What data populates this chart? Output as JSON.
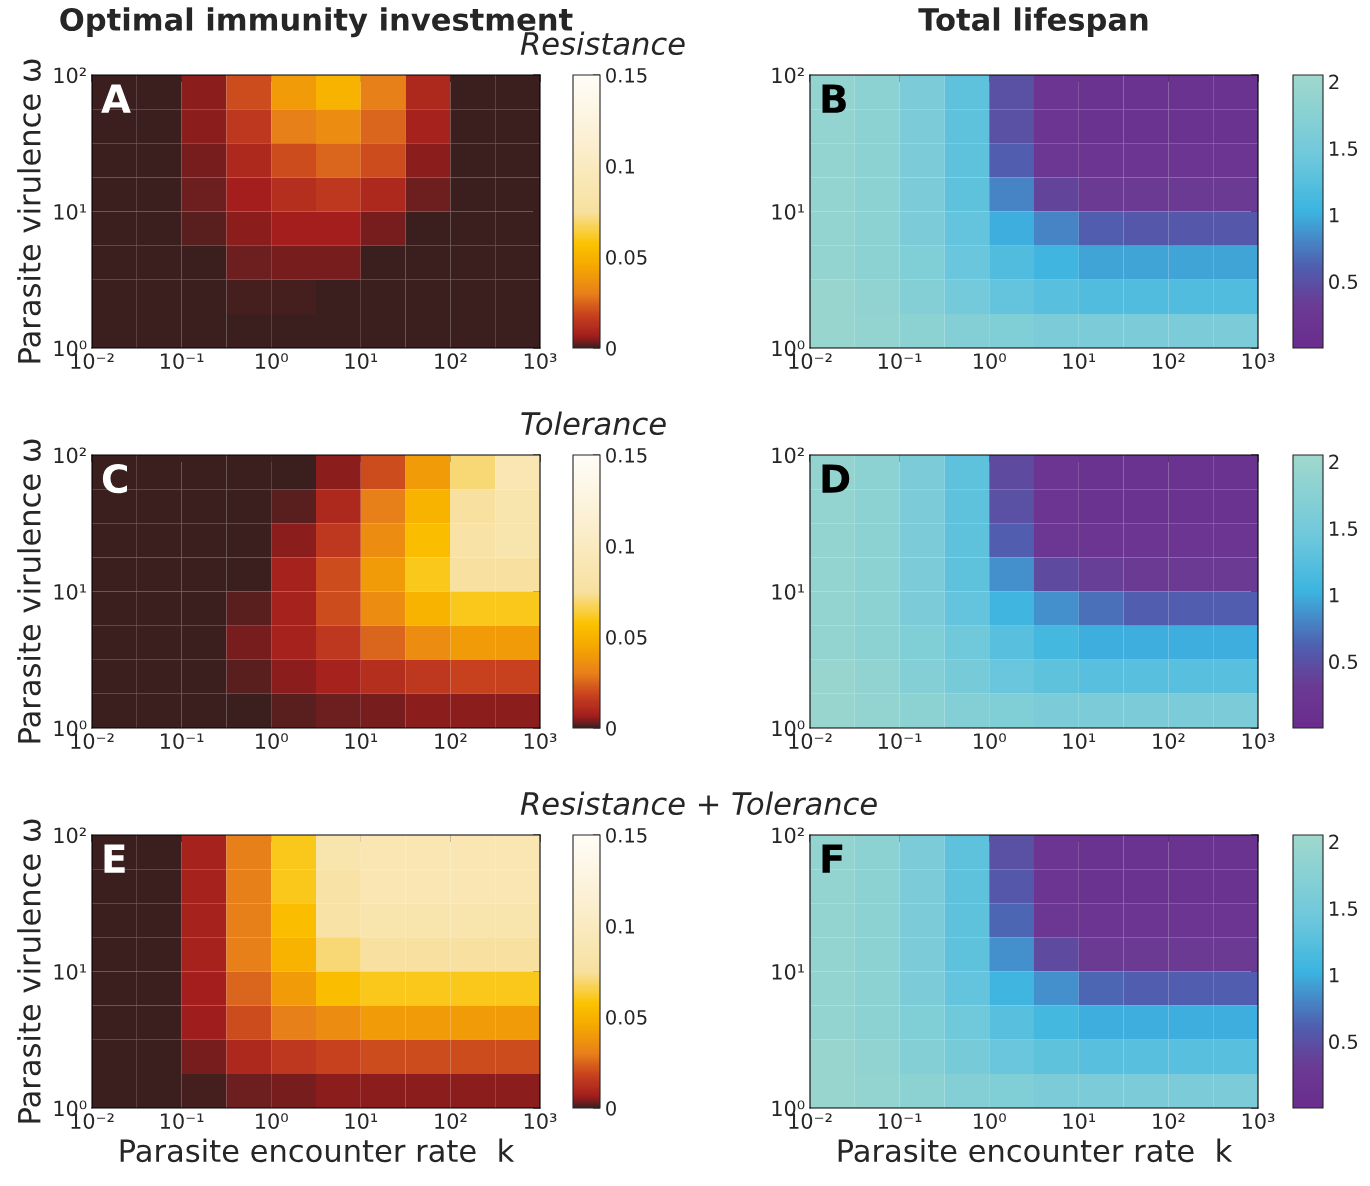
{
  "chart_data": [
    {
      "type": "heatmap",
      "title": "Optimal immunity investment",
      "subtitle": "Resistance",
      "ylabel": "Parasite virulence ω",
      "annotations": [
        "A"
      ],
      "xlim": [
        0.01,
        1000
      ],
      "ylim": [
        1,
        100
      ],
      "xticks": [
        {
          "value": 0.01,
          "label": "10⁻²"
        },
        {
          "value": 0.1,
          "label": "10⁻¹"
        },
        {
          "value": 1,
          "label": "10⁰"
        },
        {
          "value": 10,
          "label": "10¹"
        },
        {
          "value": 100,
          "label": "10²"
        },
        {
          "value": 1000,
          "label": "10³"
        }
      ],
      "yticks": [
        {
          "value": 1,
          "label": "10⁰"
        },
        {
          "value": 10,
          "label": "10¹"
        },
        {
          "value": 100,
          "label": "10²"
        }
      ],
      "clim": [
        0,
        0.15
      ],
      "cticks": [
        0,
        0.05,
        0.1,
        0.15
      ],
      "log": "xy",
      "cells": [
        [
          0,
          0,
          0.005,
          0.02,
          0.04,
          0.05,
          0.03,
          0.01,
          0,
          0
        ],
        [
          0,
          0,
          0.005,
          0.015,
          0.03,
          0.035,
          0.025,
          0.008,
          0,
          0
        ],
        [
          0,
          0,
          0.004,
          0.01,
          0.02,
          0.025,
          0.02,
          0.005,
          0,
          0
        ],
        [
          0,
          0,
          0.003,
          0.007,
          0.012,
          0.015,
          0.01,
          0.003,
          0,
          0
        ],
        [
          0,
          0,
          0.002,
          0.005,
          0.007,
          0.007,
          0.004,
          0,
          0,
          0
        ],
        [
          0,
          0,
          0,
          0.003,
          0.004,
          0.004,
          0,
          0,
          0,
          0
        ],
        [
          0,
          0,
          0,
          0.001,
          0.001,
          0,
          0,
          0,
          0,
          0
        ],
        [
          0,
          0,
          0,
          0,
          0,
          0,
          0,
          0,
          0,
          0
        ]
      ]
    },
    {
      "type": "heatmap",
      "title": "Total lifespan",
      "annotations": [
        "B"
      ],
      "xlim": [
        0.01,
        1000
      ],
      "ylim": [
        1,
        100
      ],
      "xticks": [
        {
          "value": 0.01,
          "label": "10⁻²"
        },
        {
          "value": 0.1,
          "label": "10⁻¹"
        },
        {
          "value": 1,
          "label": "10⁰"
        },
        {
          "value": 10,
          "label": "10¹"
        },
        {
          "value": 100,
          "label": "10²"
        },
        {
          "value": 1000,
          "label": "10³"
        }
      ],
      "yticks": [
        {
          "value": 1,
          "label": "10⁰"
        },
        {
          "value": 10,
          "label": "10¹"
        },
        {
          "value": 100,
          "label": "10²"
        }
      ],
      "clim": [
        0,
        2.05
      ],
      "cticks": [
        0.5,
        1,
        1.5,
        2
      ],
      "log": "xy",
      "cells": [
        [
          1.9,
          1.8,
          1.6,
          1.3,
          0.5,
          0.2,
          0.15,
          0.15,
          0.15,
          0.15
        ],
        [
          1.9,
          1.8,
          1.6,
          1.3,
          0.5,
          0.2,
          0.15,
          0.15,
          0.15,
          0.15
        ],
        [
          1.9,
          1.8,
          1.6,
          1.3,
          0.6,
          0.25,
          0.2,
          0.2,
          0.2,
          0.2
        ],
        [
          1.9,
          1.8,
          1.6,
          1.3,
          0.8,
          0.4,
          0.3,
          0.3,
          0.3,
          0.3
        ],
        [
          1.9,
          1.8,
          1.6,
          1.35,
          1.0,
          0.8,
          0.6,
          0.55,
          0.55,
          0.55
        ],
        [
          1.9,
          1.8,
          1.65,
          1.4,
          1.2,
          1.05,
          0.95,
          0.95,
          0.95,
          0.95
        ],
        [
          1.95,
          1.85,
          1.7,
          1.5,
          1.35,
          1.25,
          1.2,
          1.2,
          1.2,
          1.2
        ],
        [
          1.95,
          1.9,
          1.8,
          1.7,
          1.65,
          1.6,
          1.6,
          1.6,
          1.6,
          1.6
        ]
      ]
    },
    {
      "type": "heatmap",
      "subtitle": "Tolerance",
      "ylabel": "Parasite virulence ω",
      "annotations": [
        "C"
      ],
      "xlim": [
        0.01,
        1000
      ],
      "ylim": [
        1,
        100
      ],
      "xticks": [
        {
          "value": 0.01,
          "label": "10⁻²"
        },
        {
          "value": 0.1,
          "label": "10⁻¹"
        },
        {
          "value": 1,
          "label": "10⁰"
        },
        {
          "value": 10,
          "label": "10¹"
        },
        {
          "value": 100,
          "label": "10²"
        },
        {
          "value": 1000,
          "label": "10³"
        }
      ],
      "yticks": [
        {
          "value": 1,
          "label": "10⁰"
        },
        {
          "value": 10,
          "label": "10¹"
        },
        {
          "value": 100,
          "label": "10²"
        }
      ],
      "clim": [
        0,
        0.15
      ],
      "cticks": [
        0,
        0.05,
        0.1,
        0.15
      ],
      "log": "xy",
      "cells": [
        [
          0,
          0,
          0,
          0,
          0,
          0.005,
          0.02,
          0.04,
          0.07,
          0.09
        ],
        [
          0,
          0,
          0,
          0,
          0.002,
          0.01,
          0.03,
          0.05,
          0.075,
          0.085
        ],
        [
          0,
          0,
          0,
          0,
          0.005,
          0.015,
          0.035,
          0.055,
          0.08,
          0.085
        ],
        [
          0,
          0,
          0,
          0,
          0.008,
          0.02,
          0.04,
          0.06,
          0.075,
          0.075
        ],
        [
          0,
          0,
          0,
          0.002,
          0.008,
          0.02,
          0.035,
          0.05,
          0.06,
          0.06
        ],
        [
          0,
          0,
          0,
          0.004,
          0.008,
          0.015,
          0.025,
          0.035,
          0.04,
          0.04
        ],
        [
          0,
          0,
          0,
          0.002,
          0.005,
          0.008,
          0.012,
          0.015,
          0.018,
          0.018
        ],
        [
          0,
          0,
          0,
          0,
          0.002,
          0.003,
          0.004,
          0.005,
          0.005,
          0.005
        ]
      ]
    },
    {
      "type": "heatmap",
      "annotations": [
        "D"
      ],
      "xlim": [
        0.01,
        1000
      ],
      "ylim": [
        1,
        100
      ],
      "xticks": [
        {
          "value": 0.01,
          "label": "10⁻²"
        },
        {
          "value": 0.1,
          "label": "10⁻¹"
        },
        {
          "value": 1,
          "label": "10⁰"
        },
        {
          "value": 10,
          "label": "10¹"
        },
        {
          "value": 100,
          "label": "10²"
        },
        {
          "value": 1000,
          "label": "10³"
        }
      ],
      "yticks": [
        {
          "value": 1,
          "label": "10⁰"
        },
        {
          "value": 10,
          "label": "10¹"
        },
        {
          "value": 100,
          "label": "10²"
        }
      ],
      "clim": [
        0,
        2.05
      ],
      "cticks": [
        0.5,
        1,
        1.5,
        2
      ],
      "log": "xy",
      "cells": [
        [
          1.9,
          1.8,
          1.6,
          1.3,
          0.45,
          0.2,
          0.15,
          0.15,
          0.15,
          0.15
        ],
        [
          1.9,
          1.8,
          1.6,
          1.3,
          0.5,
          0.2,
          0.15,
          0.15,
          0.15,
          0.15
        ],
        [
          1.9,
          1.8,
          1.6,
          1.3,
          0.6,
          0.25,
          0.2,
          0.2,
          0.2,
          0.2
        ],
        [
          1.9,
          1.8,
          1.6,
          1.3,
          0.85,
          0.45,
          0.35,
          0.3,
          0.3,
          0.3
        ],
        [
          1.9,
          1.8,
          1.6,
          1.35,
          1.05,
          0.85,
          0.7,
          0.6,
          0.6,
          0.6
        ],
        [
          1.9,
          1.8,
          1.65,
          1.45,
          1.25,
          1.1,
          1.0,
          1.0,
          1.0,
          1.0
        ],
        [
          1.95,
          1.85,
          1.7,
          1.55,
          1.4,
          1.3,
          1.25,
          1.25,
          1.25,
          1.25
        ],
        [
          1.95,
          1.9,
          1.8,
          1.7,
          1.65,
          1.6,
          1.6,
          1.6,
          1.6,
          1.6
        ]
      ]
    },
    {
      "type": "heatmap",
      "subtitle": "Resistance + Tolerance",
      "ylabel": "Parasite virulence ω",
      "xlabel": "Parasite encounter rate  k",
      "annotations": [
        "E"
      ],
      "xlim": [
        0.01,
        1000
      ],
      "ylim": [
        1,
        100
      ],
      "xticks": [
        {
          "value": 0.01,
          "label": "10⁻²"
        },
        {
          "value": 0.1,
          "label": "10⁻¹"
        },
        {
          "value": 1,
          "label": "10⁰"
        },
        {
          "value": 10,
          "label": "10¹"
        },
        {
          "value": 100,
          "label": "10²"
        },
        {
          "value": 1000,
          "label": "10³"
        }
      ],
      "yticks": [
        {
          "value": 1,
          "label": "10⁰"
        },
        {
          "value": 10,
          "label": "10¹"
        },
        {
          "value": 100,
          "label": "10²"
        }
      ],
      "clim": [
        0,
        0.15
      ],
      "cticks": [
        0,
        0.05,
        0.1,
        0.15
      ],
      "log": "xy",
      "cells": [
        [
          0,
          0,
          0.008,
          0.03,
          0.06,
          0.085,
          0.09,
          0.09,
          0.09,
          0.09
        ],
        [
          0,
          0,
          0.008,
          0.03,
          0.06,
          0.08,
          0.09,
          0.09,
          0.09,
          0.09
        ],
        [
          0,
          0,
          0.008,
          0.03,
          0.055,
          0.08,
          0.085,
          0.085,
          0.085,
          0.085
        ],
        [
          0,
          0,
          0.008,
          0.03,
          0.05,
          0.07,
          0.075,
          0.075,
          0.075,
          0.075
        ],
        [
          0,
          0,
          0.007,
          0.025,
          0.04,
          0.055,
          0.06,
          0.06,
          0.06,
          0.06
        ],
        [
          0,
          0,
          0.006,
          0.02,
          0.03,
          0.035,
          0.04,
          0.04,
          0.04,
          0.04
        ],
        [
          0,
          0,
          0.004,
          0.01,
          0.015,
          0.018,
          0.02,
          0.02,
          0.02,
          0.02
        ],
        [
          0,
          0,
          0.001,
          0.003,
          0.004,
          0.005,
          0.005,
          0.005,
          0.005,
          0.005
        ]
      ]
    },
    {
      "type": "heatmap",
      "xlabel": "Parasite encounter rate  k",
      "annotations": [
        "F"
      ],
      "xlim": [
        0.01,
        1000
      ],
      "ylim": [
        1,
        100
      ],
      "xticks": [
        {
          "value": 0.01,
          "label": "10⁻²"
        },
        {
          "value": 0.1,
          "label": "10⁻¹"
        },
        {
          "value": 1,
          "label": "10⁰"
        },
        {
          "value": 10,
          "label": "10¹"
        },
        {
          "value": 100,
          "label": "10²"
        },
        {
          "value": 1000,
          "label": "10³"
        }
      ],
      "yticks": [
        {
          "value": 1,
          "label": "10⁰"
        },
        {
          "value": 10,
          "label": "10¹"
        },
        {
          "value": 100,
          "label": "10²"
        }
      ],
      "clim": [
        0,
        2.05
      ],
      "cticks": [
        0.5,
        1,
        1.5,
        2
      ],
      "log": "xy",
      "cells": [
        [
          1.9,
          1.8,
          1.6,
          1.3,
          0.5,
          0.2,
          0.15,
          0.15,
          0.15,
          0.15
        ],
        [
          1.9,
          1.8,
          1.6,
          1.3,
          0.55,
          0.2,
          0.15,
          0.15,
          0.15,
          0.15
        ],
        [
          1.9,
          1.8,
          1.6,
          1.3,
          0.65,
          0.25,
          0.2,
          0.2,
          0.2,
          0.2
        ],
        [
          1.9,
          1.8,
          1.6,
          1.3,
          0.85,
          0.45,
          0.3,
          0.3,
          0.3,
          0.3
        ],
        [
          1.9,
          1.8,
          1.6,
          1.35,
          1.05,
          0.85,
          0.65,
          0.6,
          0.6,
          0.6
        ],
        [
          1.9,
          1.8,
          1.65,
          1.45,
          1.25,
          1.1,
          1.0,
          1.0,
          1.0,
          1.0
        ],
        [
          1.95,
          1.85,
          1.7,
          1.55,
          1.4,
          1.3,
          1.25,
          1.25,
          1.25,
          1.25
        ],
        [
          1.95,
          1.9,
          1.8,
          1.7,
          1.65,
          1.6,
          1.6,
          1.6,
          1.6,
          1.6
        ]
      ]
    }
  ]
}
